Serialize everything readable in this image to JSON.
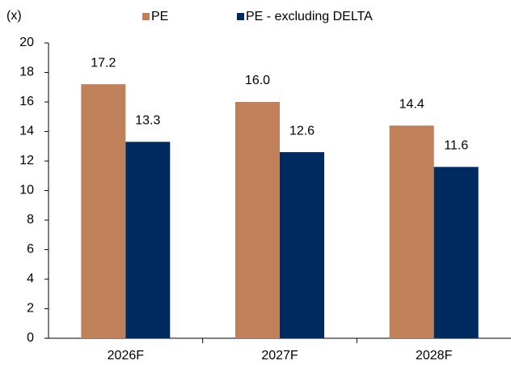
{
  "chart_data": {
    "type": "bar",
    "y_axis_label": "(x)",
    "categories": [
      "2026F",
      "2027F",
      "2028F"
    ],
    "series": [
      {
        "name": "PE",
        "color": "#c0805a",
        "values": [
          17.2,
          16.0,
          14.4
        ],
        "value_labels": [
          "17.2",
          "16.0",
          "14.4"
        ]
      },
      {
        "name": "PE - excluding DELTA",
        "color": "#002b60",
        "values": [
          13.3,
          12.6,
          11.6
        ],
        "value_labels": [
          "13.3",
          "12.6",
          "11.6"
        ]
      }
    ],
    "ylim": [
      0,
      20
    ],
    "yticks": [
      0,
      2,
      4,
      6,
      8,
      10,
      12,
      14,
      16,
      18,
      20
    ],
    "grid": false,
    "legend": "top"
  }
}
